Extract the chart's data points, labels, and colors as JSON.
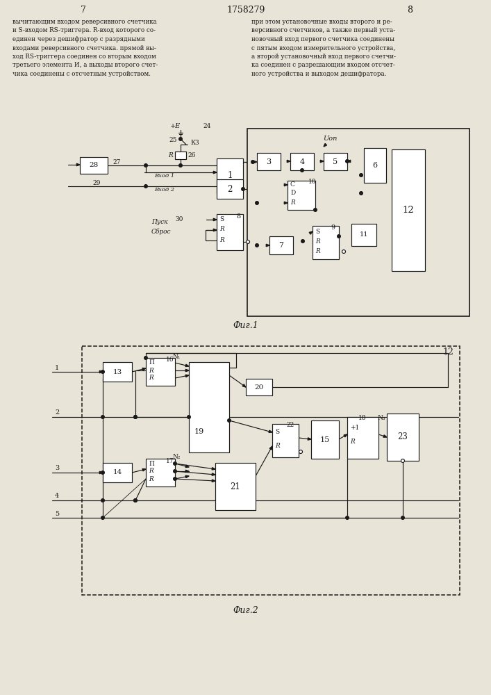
{
  "bg": "#e8e4d8",
  "page_left": "7",
  "page_center": "1758279",
  "page_right": "8",
  "fig1_caption": "Фиг.1",
  "fig2_caption": "Фиг.2",
  "text_left": "вычитающим входом реверсивного счетчика\nи S-входом RS-триггера. R-вход которого со-\nединен через дешифратор с разрядными\nвходами реверсивного счетчика. прямой вы-\nход RS-триггера соединен со вторым входом\nтретьего элемента И, а выходы второго счет-\nчика соединены с отсчетным устройством.",
  "text_right": "при этом установочные входы второго и ре-\nверсивного счетчиков, а также первый уста-\nновочный вход первого счетчика соединены\nс пятым входом измерительного устройства,\nа второй установочный вход первого счетчи-\nка соединен с разрешающим входом отсчет-\nного устройства и выходом дешифратора."
}
